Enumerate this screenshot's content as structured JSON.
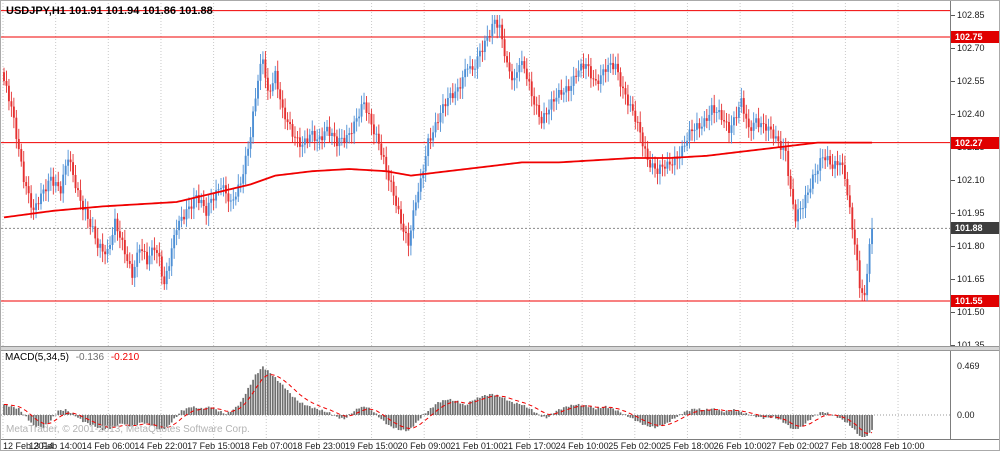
{
  "header": {
    "title": "USDJPY,H1 101.91 101.94 101.86 101.88"
  },
  "watermark": "MetaTrader, © 2001-2013, MetaQuotes Software Corp.",
  "indicator": {
    "name": "MACD(5,34,5)",
    "value_main": "-0.136",
    "value_signal": "-0.210"
  },
  "colors": {
    "bull": "#4d8fd5",
    "bear": "#e53030",
    "ma": "#f00000",
    "level": "#f00000",
    "tag_level": "#e00000",
    "tag_bid": "#3d3d3d",
    "hist": "#6e6e6e",
    "signal": "#f00000",
    "grid": "#c9c9c9",
    "zero_line": "#9a9a9a",
    "bid_line": "#8a8a8a"
  },
  "price_axis": {
    "ticks": [
      "102.85",
      "102.70",
      "102.55",
      "102.40",
      "102.25",
      "102.10",
      "101.95",
      "101.80",
      "101.65",
      "101.50",
      "101.35"
    ],
    "tags": [
      {
        "text": "102.75",
        "type": "level"
      },
      {
        "text": "102.27",
        "type": "level"
      },
      {
        "text": "101.88",
        "type": "bid"
      },
      {
        "text": "101.55",
        "type": "level"
      }
    ]
  },
  "macd_axis": {
    "ticks": [
      "0.469",
      "0.00"
    ]
  },
  "time_axis": {
    "labels": [
      "12 Feb 2014",
      "13 Feb 14:00",
      "14 Feb 06:00",
      "14 Feb 22:00",
      "17 Feb 15:00",
      "18 Feb 07:00",
      "18 Feb 23:00",
      "19 Feb 15:00",
      "20 Feb 09:00",
      "21 Feb 01:00",
      "21 Feb 17:00",
      "24 Feb 10:00",
      "25 Feb 02:00",
      "25 Feb 18:00",
      "26 Feb 10:00",
      "27 Feb 02:00",
      "27 Feb 18:00",
      "28 Feb 10:00"
    ]
  },
  "chart_data": [
    {
      "type": "candlestick",
      "title": "USDJPY H1",
      "ylim": [
        101.35,
        102.85
      ],
      "bars": 353,
      "levels": [
        102.87,
        102.75,
        102.27,
        101.55
      ],
      "current_price": 101.88,
      "close_anchors": [
        [
          0,
          102.55
        ],
        [
          3,
          102.42
        ],
        [
          8,
          102.12
        ],
        [
          12,
          101.95
        ],
        [
          15,
          102.02
        ],
        [
          19,
          102.12
        ],
        [
          23,
          102.05
        ],
        [
          26,
          102.2
        ],
        [
          30,
          102.05
        ],
        [
          34,
          101.92
        ],
        [
          38,
          101.8
        ],
        [
          42,
          101.78
        ],
        [
          45,
          101.9
        ],
        [
          48,
          101.8
        ],
        [
          52,
          101.68
        ],
        [
          55,
          101.8
        ],
        [
          58,
          101.72
        ],
        [
          61,
          101.8
        ],
        [
          63,
          101.75
        ],
        [
          65,
          101.63
        ],
        [
          67,
          101.72
        ],
        [
          70,
          101.88
        ],
        [
          74,
          101.97
        ],
        [
          78,
          102.02
        ],
        [
          82,
          101.95
        ],
        [
          84,
          102.02
        ],
        [
          88,
          102.08
        ],
        [
          92,
          101.98
        ],
        [
          96,
          102.1
        ],
        [
          100,
          102.3
        ],
        [
          103,
          102.55
        ],
        [
          105,
          102.66
        ],
        [
          107,
          102.5
        ],
        [
          110,
          102.58
        ],
        [
          113,
          102.4
        ],
        [
          117,
          102.32
        ],
        [
          121,
          102.26
        ],
        [
          125,
          102.3
        ],
        [
          127,
          102.28
        ],
        [
          131,
          102.34
        ],
        [
          135,
          102.26
        ],
        [
          139,
          102.3
        ],
        [
          143,
          102.38
        ],
        [
          146,
          102.44
        ],
        [
          148,
          102.38
        ],
        [
          152,
          102.28
        ],
        [
          156,
          102.1
        ],
        [
          160,
          101.95
        ],
        [
          164,
          101.82
        ],
        [
          167,
          102.0
        ],
        [
          169,
          102.08
        ],
        [
          172,
          102.28
        ],
        [
          176,
          102.38
        ],
        [
          180,
          102.46
        ],
        [
          184,
          102.52
        ],
        [
          188,
          102.62
        ],
        [
          190,
          102.58
        ],
        [
          193,
          102.68
        ],
        [
          196,
          102.76
        ],
        [
          199,
          102.82
        ],
        [
          201,
          102.78
        ],
        [
          204,
          102.62
        ],
        [
          207,
          102.56
        ],
        [
          209,
          102.64
        ],
        [
          211,
          102.6
        ],
        [
          214,
          102.48
        ],
        [
          218,
          102.38
        ],
        [
          222,
          102.44
        ],
        [
          226,
          102.5
        ],
        [
          230,
          102.54
        ],
        [
          232,
          102.58
        ],
        [
          236,
          102.62
        ],
        [
          240,
          102.55
        ],
        [
          244,
          102.6
        ],
        [
          248,
          102.62
        ],
        [
          251,
          102.52
        ],
        [
          253,
          102.46
        ],
        [
          257,
          102.34
        ],
        [
          261,
          102.2
        ],
        [
          265,
          102.14
        ],
        [
          269,
          102.16
        ],
        [
          272,
          102.2
        ],
        [
          275,
          102.24
        ],
        [
          279,
          102.32
        ],
        [
          283,
          102.36
        ],
        [
          287,
          102.42
        ],
        [
          291,
          102.38
        ],
        [
          294,
          102.34
        ],
        [
          296,
          102.38
        ],
        [
          299,
          102.45
        ],
        [
          302,
          102.32
        ],
        [
          305,
          102.38
        ],
        [
          309,
          102.34
        ],
        [
          313,
          102.28
        ],
        [
          317,
          102.24
        ],
        [
          319,
          102.05
        ],
        [
          321,
          101.92
        ],
        [
          324,
          101.98
        ],
        [
          328,
          102.12
        ],
        [
          332,
          102.2
        ],
        [
          336,
          102.16
        ],
        [
          339,
          102.2
        ],
        [
          341,
          102.12
        ],
        [
          343,
          101.95
        ],
        [
          345,
          101.8
        ],
        [
          347,
          101.62
        ],
        [
          349,
          101.57
        ],
        [
          350,
          101.7
        ],
        [
          351,
          101.82
        ],
        [
          352,
          101.88
        ]
      ],
      "ma_anchors": [
        [
          0,
          101.93
        ],
        [
          20,
          101.96
        ],
        [
          40,
          101.98
        ],
        [
          55,
          101.99
        ],
        [
          70,
          102.0
        ],
        [
          85,
          102.04
        ],
        [
          100,
          102.08
        ],
        [
          110,
          102.12
        ],
        [
          125,
          102.14
        ],
        [
          140,
          102.15
        ],
        [
          155,
          102.14
        ],
        [
          165,
          102.12
        ],
        [
          180,
          102.14
        ],
        [
          195,
          102.16
        ],
        [
          210,
          102.18
        ],
        [
          225,
          102.18
        ],
        [
          240,
          102.19
        ],
        [
          255,
          102.2
        ],
        [
          270,
          102.2
        ],
        [
          285,
          102.21
        ],
        [
          300,
          102.23
        ],
        [
          315,
          102.25
        ],
        [
          330,
          102.27
        ],
        [
          352,
          102.27
        ]
      ]
    },
    {
      "type": "bar",
      "name": "MACD(5,34,5)",
      "ylim": [
        -0.25,
        0.469
      ],
      "current_macd": -0.136,
      "current_signal": -0.21,
      "macd_anchors": [
        [
          0,
          0.1
        ],
        [
          6,
          0.06
        ],
        [
          9,
          -0.02
        ],
        [
          12,
          -0.1
        ],
        [
          16,
          -0.12
        ],
        [
          19,
          -0.05
        ],
        [
          22,
          0.04
        ],
        [
          25,
          0.05
        ],
        [
          28,
          0.01
        ],
        [
          32,
          -0.06
        ],
        [
          36,
          -0.1
        ],
        [
          40,
          -0.14
        ],
        [
          44,
          -0.12
        ],
        [
          48,
          -0.08
        ],
        [
          52,
          -0.11
        ],
        [
          56,
          -0.07
        ],
        [
          60,
          -0.1
        ],
        [
          63,
          -0.14
        ],
        [
          66,
          -0.12
        ],
        [
          69,
          -0.04
        ],
        [
          72,
          0.04
        ],
        [
          76,
          0.08
        ],
        [
          80,
          0.06
        ],
        [
          84,
          0.08
        ],
        [
          87,
          0.04
        ],
        [
          90,
          0.01
        ],
        [
          93,
          0.05
        ],
        [
          96,
          0.12
        ],
        [
          99,
          0.25
        ],
        [
          102,
          0.38
        ],
        [
          105,
          0.46
        ],
        [
          108,
          0.4
        ],
        [
          111,
          0.33
        ],
        [
          114,
          0.26
        ],
        [
          117,
          0.18
        ],
        [
          120,
          0.12
        ],
        [
          124,
          0.08
        ],
        [
          128,
          0.05
        ],
        [
          132,
          0.02
        ],
        [
          135,
          -0.02
        ],
        [
          138,
          -0.04
        ],
        [
          141,
          0.02
        ],
        [
          144,
          0.07
        ],
        [
          147,
          0.08
        ],
        [
          150,
          0.03
        ],
        [
          153,
          -0.04
        ],
        [
          156,
          -0.1
        ],
        [
          160,
          -0.14
        ],
        [
          164,
          -0.15
        ],
        [
          167,
          -0.08
        ],
        [
          170,
          0.0
        ],
        [
          173,
          0.06
        ],
        [
          176,
          0.12
        ],
        [
          180,
          0.15
        ],
        [
          184,
          0.13
        ],
        [
          187,
          0.09
        ],
        [
          190,
          0.14
        ],
        [
          194,
          0.18
        ],
        [
          198,
          0.2
        ],
        [
          202,
          0.17
        ],
        [
          206,
          0.12
        ],
        [
          210,
          0.1
        ],
        [
          214,
          0.05
        ],
        [
          217,
          0.0
        ],
        [
          220,
          -0.03
        ],
        [
          224,
          0.04
        ],
        [
          228,
          0.08
        ],
        [
          232,
          0.1
        ],
        [
          236,
          0.09
        ],
        [
          240,
          0.06
        ],
        [
          244,
          0.08
        ],
        [
          248,
          0.05
        ],
        [
          252,
          0.0
        ],
        [
          256,
          -0.05
        ],
        [
          260,
          -0.1
        ],
        [
          264,
          -0.12
        ],
        [
          268,
          -0.09
        ],
        [
          272,
          -0.03
        ],
        [
          276,
          0.03
        ],
        [
          280,
          0.06
        ],
        [
          284,
          0.05
        ],
        [
          288,
          0.06
        ],
        [
          292,
          0.03
        ],
        [
          296,
          0.05
        ],
        [
          300,
          0.02
        ],
        [
          304,
          -0.01
        ],
        [
          308,
          -0.03
        ],
        [
          312,
          -0.02
        ],
        [
          315,
          -0.05
        ],
        [
          318,
          -0.1
        ],
        [
          320,
          -0.14
        ],
        [
          323,
          -0.12
        ],
        [
          326,
          -0.06
        ],
        [
          329,
          0.0
        ],
        [
          332,
          0.03
        ],
        [
          335,
          0.01
        ],
        [
          338,
          -0.02
        ],
        [
          341,
          -0.06
        ],
        [
          344,
          -0.12
        ],
        [
          347,
          -0.2
        ],
        [
          349,
          -0.24
        ],
        [
          351,
          -0.17
        ],
        [
          352,
          -0.136
        ]
      ]
    }
  ]
}
